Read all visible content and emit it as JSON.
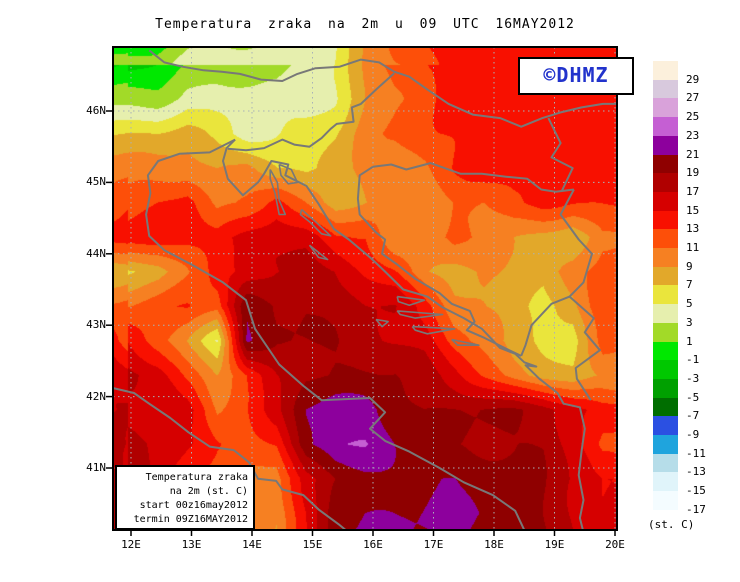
{
  "title": "Temperatura zraka na 2m u 09 UTC 16MAY2012",
  "watermark": "©DHMZ",
  "info_box": {
    "lines": [
      "Temperatura zraka",
      "na 2m (st. C)",
      "start 00z16may2012",
      "termin 09Z16MAY2012"
    ]
  },
  "legend": {
    "unit": "(st. C)",
    "labels": [
      "29",
      "27",
      "25",
      "23",
      "21",
      "19",
      "17",
      "15",
      "13",
      "11",
      "9",
      "7",
      "5",
      "3",
      "1",
      "-1",
      "-3",
      "-5",
      "-7",
      "-9",
      "-11",
      "-13",
      "-15",
      "-17"
    ]
  },
  "axes": {
    "lat_ticks": [
      {
        "label": "46N",
        "value": 46
      },
      {
        "label": "45N",
        "value": 45
      },
      {
        "label": "44N",
        "value": 44
      },
      {
        "label": "43N",
        "value": 43
      },
      {
        "label": "42N",
        "value": 42
      },
      {
        "label": "41N",
        "value": 41
      }
    ],
    "lon_ticks": [
      {
        "label": "12E",
        "value": 12
      },
      {
        "label": "13E",
        "value": 13
      },
      {
        "label": "14E",
        "value": 14
      },
      {
        "label": "15E",
        "value": 15
      },
      {
        "label": "16E",
        "value": 16
      },
      {
        "label": "17E",
        "value": 17
      },
      {
        "label": "18E",
        "value": 18
      },
      {
        "label": "19E",
        "value": 19
      },
      {
        "label": "20E",
        "value": 20
      }
    ],
    "lon_range": [
      11.7,
      20.03
    ],
    "lat_range": [
      40.13,
      46.9
    ]
  },
  "colors": {
    "watermark_blue": "#2233cc",
    "coastline_gray": "#787878",
    "gridline_gray": "#a8b2b8",
    "frame_black": "#000000"
  },
  "chart_data": {
    "type": "heatmap",
    "title": "Temperatura zraka na 2m u 09 UTC 16MAY2012",
    "units": "st. C",
    "palette": {
      "bin_lows": [
        -17,
        -15,
        -13,
        -11,
        -9,
        -7,
        -5,
        -3,
        -1,
        1,
        3,
        5,
        7,
        9,
        11,
        13,
        15,
        17,
        19,
        21,
        23,
        25,
        27,
        29
      ],
      "colors": [
        "#f4fcff",
        "#e0f4fa",
        "#b6dde9",
        "#1fa4dd",
        "#2b50e2",
        "#006e00",
        "#00a000",
        "#00c800",
        "#00e800",
        "#a2da28",
        "#e6efae",
        "#eae53c",
        "#e2a82a",
        "#f68022",
        "#fd4f09",
        "#f81000",
        "#d60000",
        "#b00000",
        "#8f0000",
        "#8d009d",
        "#c55fd3",
        "#d9a2da",
        "#d8c9dd",
        "#fcf0dc"
      ]
    },
    "grid": {
      "lon_start": 11.95,
      "lon_step": 0.494,
      "lat_start": 46.66,
      "lat_step": -0.4836,
      "values": [
        [
          -2,
          -1,
          1,
          2,
          2,
          2,
          4,
          5,
          9,
          12,
          13,
          14,
          14,
          14,
          14,
          14,
          14
        ],
        [
          2,
          2,
          4,
          4,
          4,
          4,
          4,
          5,
          9,
          11,
          12,
          14,
          14,
          14,
          14,
          14,
          14
        ],
        [
          7,
          7,
          8,
          6,
          4,
          5,
          6,
          7,
          10,
          11,
          13,
          13,
          14,
          14,
          14,
          14,
          14
        ],
        [
          10,
          10,
          10,
          9,
          10,
          7,
          6,
          8,
          10,
          10,
          11,
          13,
          14,
          14,
          14,
          14,
          14
        ],
        [
          12,
          13,
          14,
          10,
          11,
          14,
          11,
          8,
          9,
          10,
          9,
          11,
          11,
          13,
          14,
          13,
          13
        ],
        [
          14,
          14,
          14,
          14,
          16,
          17,
          16,
          13,
          13,
          9,
          10,
          12,
          10,
          9,
          8,
          7,
          11
        ],
        [
          7,
          8,
          11,
          14,
          15,
          17,
          18,
          17,
          15,
          13,
          9,
          8,
          9,
          9,
          8,
          10,
          12
        ],
        [
          11,
          12,
          13,
          12,
          21,
          19,
          19,
          18,
          17,
          17,
          14,
          10,
          9,
          8,
          6,
          8,
          13
        ],
        [
          15,
          12,
          9,
          5,
          21,
          19,
          19,
          19,
          18,
          17,
          16,
          12,
          10,
          8,
          7,
          6,
          12
        ],
        [
          18,
          16,
          12,
          9,
          13,
          17,
          19,
          19,
          19,
          19,
          18,
          16,
          13,
          10,
          8,
          7,
          9
        ],
        [
          16,
          17,
          16,
          11,
          13,
          16,
          21,
          22,
          22,
          20,
          19,
          19,
          19,
          19,
          18,
          16,
          14
        ],
        [
          18,
          17,
          15,
          13,
          12,
          13,
          21,
          23,
          23,
          21,
          20,
          19,
          19,
          19,
          19,
          16,
          12
        ],
        [
          19,
          16,
          13,
          12,
          11,
          10,
          16,
          19,
          20,
          21,
          21,
          21,
          20,
          19,
          19,
          17,
          15
        ],
        [
          19,
          16,
          13,
          13,
          11,
          9,
          15,
          21,
          21,
          21,
          21,
          21,
          21,
          21,
          19,
          17,
          15
        ]
      ]
    }
  },
  "map": {
    "borders": [
      [
        [
          13.72,
          45.6
        ],
        [
          13.3,
          45.42
        ],
        [
          12.8,
          45.4
        ],
        [
          12.45,
          45.3
        ],
        [
          12.28,
          45.1
        ],
        [
          12.32,
          44.85
        ],
        [
          12.25,
          44.55
        ],
        [
          12.3,
          44.25
        ],
        [
          12.55,
          44.05
        ],
        [
          13.0,
          43.85
        ],
        [
          13.52,
          43.6
        ],
        [
          13.9,
          43.35
        ],
        [
          14.05,
          42.95
        ],
        [
          14.45,
          42.45
        ],
        [
          14.85,
          42.15
        ],
        [
          15.15,
          41.95
        ],
        [
          15.95,
          41.98
        ],
        [
          16.2,
          41.78
        ],
        [
          15.95,
          41.55
        ],
        [
          16.2,
          41.38
        ],
        [
          16.6,
          41.23
        ],
        [
          17.1,
          41.0
        ],
        [
          17.5,
          40.8
        ],
        [
          17.98,
          40.62
        ],
        [
          18.35,
          40.4
        ],
        [
          18.5,
          40.13
        ]
      ],
      [
        [
          13.72,
          45.6
        ],
        [
          13.58,
          45.48
        ],
        [
          13.52,
          45.3
        ],
        [
          13.6,
          45.05
        ],
        [
          13.85,
          44.82
        ],
        [
          14.1,
          45.0
        ],
        [
          14.2,
          45.12
        ],
        [
          14.32,
          45.3
        ],
        [
          14.6,
          45.25
        ],
        [
          14.55,
          45.1
        ],
        [
          14.9,
          44.95
        ],
        [
          15.1,
          44.7
        ],
        [
          15.35,
          44.35
        ],
        [
          15.6,
          44.2
        ],
        [
          15.95,
          43.95
        ],
        [
          16.2,
          43.75
        ],
        [
          16.5,
          43.5
        ],
        [
          16.9,
          43.4
        ],
        [
          17.15,
          43.25
        ],
        [
          17.5,
          43.1
        ],
        [
          17.8,
          42.95
        ],
        [
          18.1,
          42.68
        ],
        [
          18.35,
          42.6
        ],
        [
          18.5,
          42.48
        ],
        [
          18.7,
          42.42
        ],
        [
          18.52,
          42.44
        ],
        [
          18.75,
          42.25
        ],
        [
          19.05,
          42.05
        ],
        [
          19.15,
          41.9
        ],
        [
          19.42,
          41.85
        ],
        [
          19.5,
          41.55
        ],
        [
          19.45,
          41.25
        ],
        [
          19.4,
          40.9
        ],
        [
          19.48,
          40.55
        ],
        [
          19.42,
          40.3
        ],
        [
          19.47,
          40.13
        ]
      ],
      [
        [
          11.7,
          42.12
        ],
        [
          12.05,
          42.05
        ],
        [
          12.3,
          41.9
        ],
        [
          12.65,
          41.7
        ],
        [
          12.95,
          41.5
        ],
        [
          13.3,
          41.3
        ],
        [
          13.7,
          41.25
        ],
        [
          13.95,
          41.08
        ],
        [
          14.1,
          40.85
        ],
        [
          14.4,
          40.82
        ],
        [
          14.5,
          40.7
        ],
        [
          14.85,
          40.62
        ],
        [
          15.1,
          40.42
        ],
        [
          15.45,
          40.2
        ],
        [
          15.55,
          40.13
        ]
      ],
      [
        [
          12.3,
          46.85
        ],
        [
          12.55,
          46.68
        ],
        [
          12.85,
          46.62
        ],
        [
          13.2,
          46.57
        ],
        [
          13.5,
          46.55
        ],
        [
          13.8,
          46.52
        ],
        [
          14.15,
          46.44
        ],
        [
          14.5,
          46.42
        ],
        [
          14.75,
          46.52
        ],
        [
          15.05,
          46.6
        ],
        [
          15.45,
          46.62
        ],
        [
          15.8,
          46.72
        ],
        [
          16.1,
          46.68
        ],
        [
          16.35,
          46.55
        ],
        [
          16.6,
          46.48
        ],
        [
          16.9,
          46.3
        ],
        [
          17.25,
          46.1
        ],
        [
          17.65,
          45.95
        ],
        [
          18.1,
          45.9
        ],
        [
          18.45,
          45.78
        ],
        [
          18.8,
          45.9
        ],
        [
          19.1,
          45.98
        ],
        [
          19.45,
          46.05
        ],
        [
          19.8,
          46.1
        ],
        [
          20.03,
          46.1
        ]
      ],
      [
        [
          13.6,
          45.47
        ],
        [
          13.9,
          45.45
        ],
        [
          14.2,
          45.48
        ],
        [
          14.5,
          45.6
        ],
        [
          14.7,
          45.53
        ],
        [
          14.95,
          45.5
        ],
        [
          15.15,
          45.62
        ],
        [
          15.3,
          45.75
        ],
        [
          15.4,
          45.82
        ],
        [
          15.68,
          45.85
        ],
        [
          15.65,
          46.05
        ],
        [
          15.8,
          46.1
        ],
        [
          16.05,
          46.3
        ],
        [
          16.35,
          46.53
        ]
      ],
      [
        [
          16.0,
          45.22
        ],
        [
          16.3,
          45.25
        ],
        [
          16.55,
          45.18
        ],
        [
          16.95,
          45.27
        ],
        [
          17.45,
          45.12
        ],
        [
          17.8,
          45.12
        ],
        [
          18.2,
          45.08
        ],
        [
          18.55,
          45.05
        ],
        [
          18.78,
          44.9
        ],
        [
          19.02,
          44.87
        ],
        [
          19.32,
          44.9
        ]
      ],
      [
        [
          19.32,
          44.9
        ],
        [
          19.1,
          44.55
        ],
        [
          19.4,
          44.2
        ],
        [
          19.62,
          44.0
        ],
        [
          19.48,
          43.6
        ],
        [
          19.25,
          43.4
        ],
        [
          19.65,
          43.1
        ],
        [
          19.5,
          42.9
        ],
        [
          19.75,
          42.65
        ],
        [
          19.35,
          42.4
        ],
        [
          19.37,
          42.25
        ],
        [
          19.6,
          41.95
        ]
      ],
      [
        [
          16.0,
          45.22
        ],
        [
          15.78,
          45.1
        ],
        [
          15.75,
          44.77
        ],
        [
          15.78,
          44.55
        ],
        [
          16.05,
          44.3
        ],
        [
          16.2,
          44.2
        ],
        [
          16.15,
          44.0
        ],
        [
          16.4,
          43.85
        ],
        [
          16.7,
          43.65
        ],
        [
          17.1,
          43.45
        ],
        [
          17.3,
          43.3
        ],
        [
          17.6,
          43.2
        ],
        [
          17.68,
          43.05
        ],
        [
          17.55,
          42.93
        ],
        [
          17.85,
          42.82
        ],
        [
          18.25,
          42.65
        ],
        [
          18.45,
          42.57
        ]
      ],
      [
        [
          18.45,
          42.57
        ],
        [
          18.52,
          42.72
        ],
        [
          18.62,
          43.0
        ],
        [
          18.95,
          43.3
        ],
        [
          19.25,
          43.4
        ]
      ],
      [
        [
          18.9,
          45.9
        ],
        [
          19.1,
          45.55
        ],
        [
          18.95,
          45.35
        ],
        [
          19.3,
          45.2
        ],
        [
          19.12,
          44.88
        ]
      ]
    ],
    "islands": [
      [
        [
          14.45,
          45.25
        ],
        [
          14.65,
          45.18
        ],
        [
          14.75,
          45.0
        ],
        [
          14.6,
          44.98
        ],
        [
          14.48,
          45.1
        ],
        [
          14.45,
          45.25
        ]
      ],
      [
        [
          14.3,
          45.18
        ],
        [
          14.42,
          45.0
        ],
        [
          14.45,
          44.75
        ],
        [
          14.55,
          44.55
        ],
        [
          14.45,
          44.55
        ],
        [
          14.38,
          44.85
        ],
        [
          14.3,
          45.05
        ],
        [
          14.3,
          45.18
        ]
      ],
      [
        [
          14.82,
          44.62
        ],
        [
          15.05,
          44.45
        ],
        [
          15.3,
          44.25
        ],
        [
          15.15,
          44.28
        ],
        [
          14.95,
          44.45
        ],
        [
          14.8,
          44.55
        ],
        [
          14.82,
          44.62
        ]
      ],
      [
        [
          14.95,
          44.12
        ],
        [
          15.25,
          43.92
        ],
        [
          15.1,
          43.95
        ],
        [
          14.95,
          44.12
        ]
      ],
      [
        [
          16.4,
          43.4
        ],
        [
          16.85,
          43.35
        ],
        [
          16.6,
          43.28
        ],
        [
          16.42,
          43.33
        ],
        [
          16.4,
          43.4
        ]
      ],
      [
        [
          16.4,
          43.2
        ],
        [
          17.15,
          43.15
        ],
        [
          16.7,
          43.1
        ],
        [
          16.45,
          43.15
        ],
        [
          16.4,
          43.2
        ]
      ],
      [
        [
          16.65,
          42.98
        ],
        [
          17.35,
          42.95
        ],
        [
          16.9,
          42.88
        ],
        [
          16.7,
          42.93
        ],
        [
          16.65,
          42.98
        ]
      ],
      [
        [
          16.05,
          43.08
        ],
        [
          16.25,
          43.05
        ],
        [
          16.15,
          42.98
        ],
        [
          16.05,
          43.08
        ]
      ],
      [
        [
          17.3,
          42.8
        ],
        [
          17.75,
          42.72
        ],
        [
          17.4,
          42.72
        ],
        [
          17.3,
          42.8
        ]
      ]
    ]
  }
}
